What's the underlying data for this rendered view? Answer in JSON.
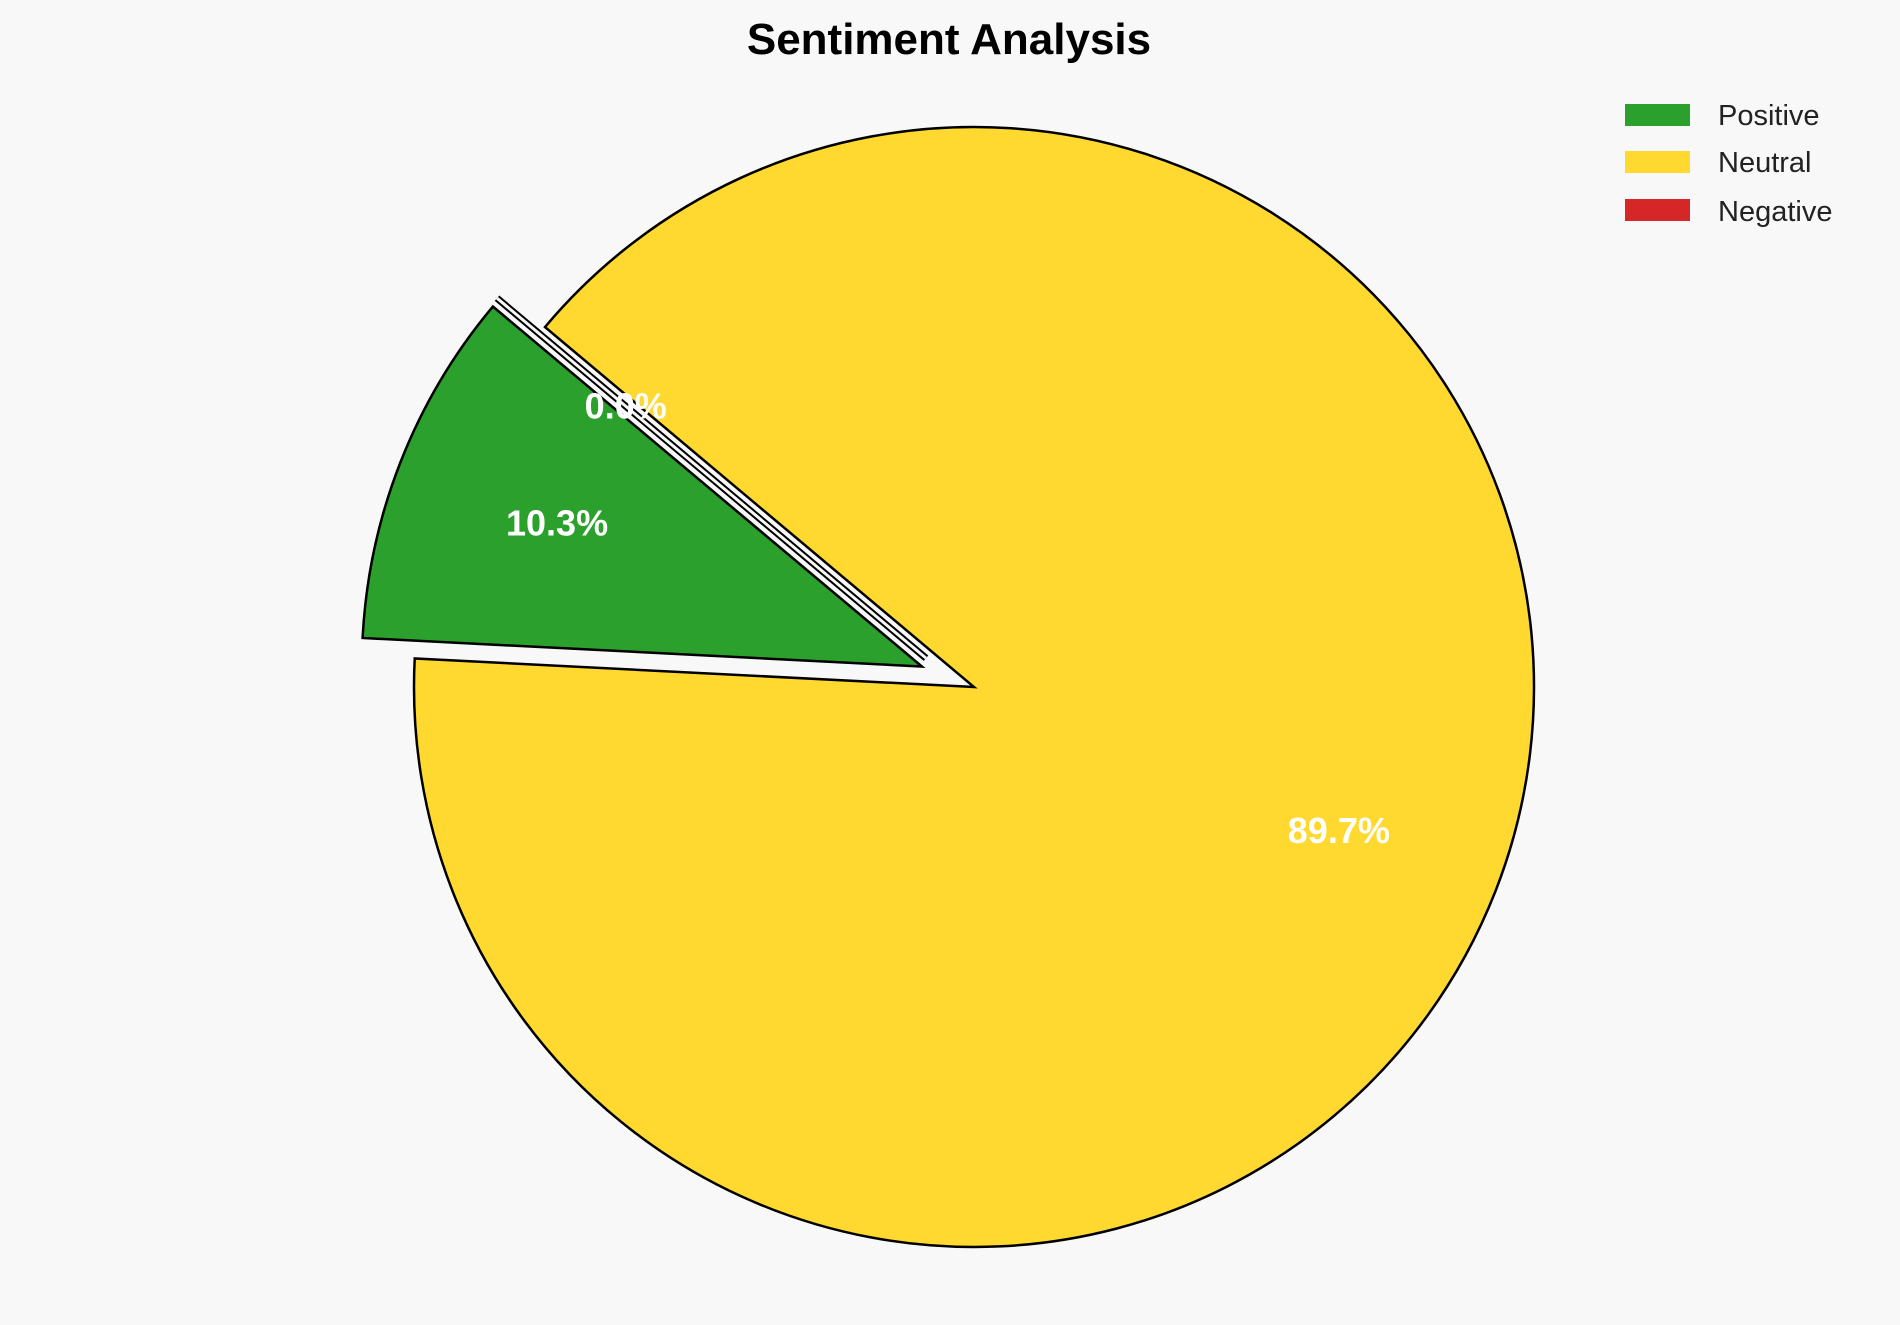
{
  "chart_data": {
    "type": "pie",
    "title": "Sentiment Analysis",
    "categories": [
      "Positive",
      "Neutral",
      "Negative"
    ],
    "values": [
      10.3,
      89.7,
      0.0
    ],
    "labels": [
      "10.3%",
      "89.7%",
      "0.0%"
    ],
    "colors": [
      "#2ca02c",
      "#ffd92f",
      "#d62728"
    ],
    "explode": [
      0.1,
      0,
      0.1
    ],
    "start_angle": 140,
    "legend_position": "top-right",
    "edge_color": "#000000",
    "background": "#f8f8f8"
  }
}
